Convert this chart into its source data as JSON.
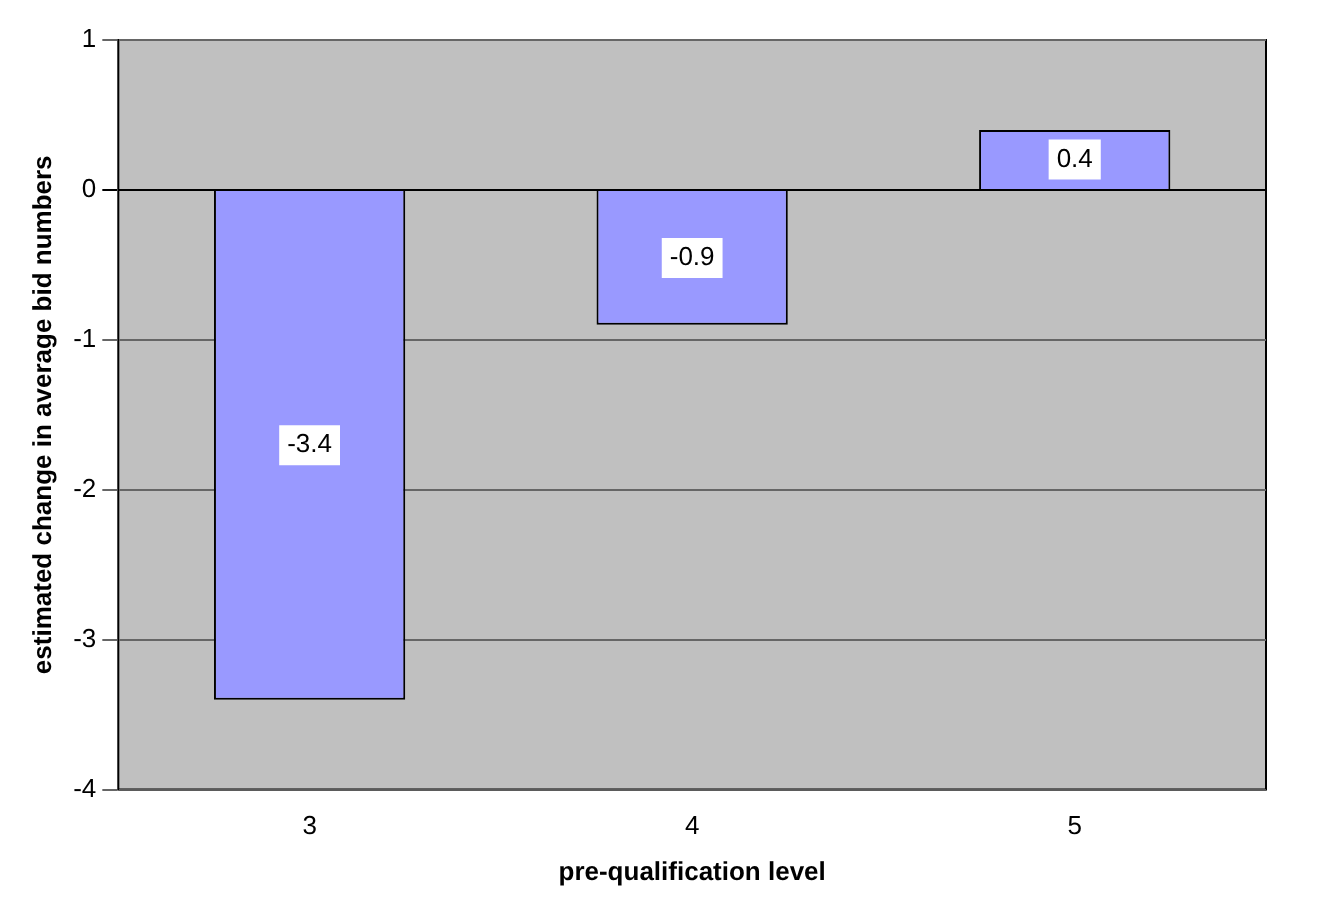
{
  "chart_data": {
    "type": "bar",
    "xlabel": "pre-qualification level",
    "ylabel": "estimated change in average bid numbers",
    "categories": [
      "3",
      "4",
      "5"
    ],
    "values": [
      -3.4,
      -0.9,
      0.4
    ],
    "color": "#9999ff",
    "ylim": [
      -4,
      1
    ],
    "yticks": [
      -4,
      -3,
      -2,
      -1,
      0,
      1
    ],
    "grid": "y",
    "data_labels": true,
    "legend": false
  }
}
